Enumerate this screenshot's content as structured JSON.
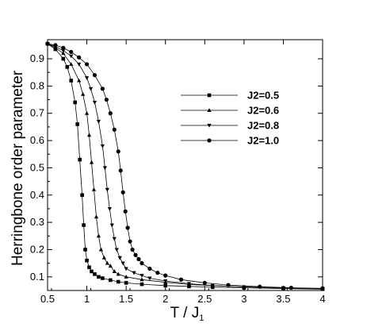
{
  "chart_data": {
    "type": "line",
    "xlabel": "T /  J",
    "xlabel_subscript": "1",
    "ylabel": "Herringbone order parameter",
    "xlim": [
      0.5,
      4
    ],
    "ylim": [
      0.05,
      0.97
    ],
    "x_ticks": [
      "0.5",
      "1",
      "1.5",
      "2",
      "2.5",
      "3",
      "3.5",
      "4"
    ],
    "y_ticks": [
      "0.1",
      "0.2",
      "0.3",
      "0.4",
      "0.5",
      "0.6",
      "0.7",
      "0.8",
      "0.9"
    ],
    "legend_position": "upper-right",
    "series": [
      {
        "name": "J2=0.5",
        "marker": "square",
        "x": [
          0.5,
          0.6,
          0.7,
          0.75,
          0.8,
          0.85,
          0.88,
          0.91,
          0.94,
          0.96,
          0.98,
          1.0,
          1.03,
          1.06,
          1.1,
          1.15,
          1.2,
          1.3,
          1.4,
          1.5,
          1.7,
          2.0,
          2.3,
          2.6,
          3.0,
          3.5,
          4.0
        ],
        "y": [
          0.955,
          0.935,
          0.9,
          0.87,
          0.82,
          0.74,
          0.66,
          0.53,
          0.4,
          0.29,
          0.2,
          0.16,
          0.135,
          0.12,
          0.11,
          0.1,
          0.095,
          0.088,
          0.082,
          0.078,
          0.073,
          0.068,
          0.065,
          0.062,
          0.06,
          0.057,
          0.055
        ]
      },
      {
        "name": "J2=0.6",
        "marker": "triangle-up",
        "x": [
          0.5,
          0.6,
          0.7,
          0.8,
          0.9,
          0.95,
          1.0,
          1.03,
          1.06,
          1.09,
          1.12,
          1.15,
          1.18,
          1.22,
          1.26,
          1.3,
          1.35,
          1.4,
          1.5,
          1.7,
          2.0,
          2.3,
          2.6,
          3.0,
          3.5,
          4.0
        ],
        "y": [
          0.955,
          0.94,
          0.92,
          0.88,
          0.82,
          0.77,
          0.7,
          0.62,
          0.52,
          0.42,
          0.32,
          0.25,
          0.2,
          0.17,
          0.15,
          0.14,
          0.12,
          0.11,
          0.1,
          0.09,
          0.08,
          0.072,
          0.068,
          0.063,
          0.059,
          0.057
        ]
      },
      {
        "name": "J2=0.8",
        "marker": "triangle-down",
        "x": [
          0.5,
          0.6,
          0.7,
          0.8,
          0.9,
          1.0,
          1.05,
          1.1,
          1.15,
          1.2,
          1.23,
          1.26,
          1.29,
          1.32,
          1.35,
          1.38,
          1.42,
          1.46,
          1.5,
          1.6,
          1.7,
          1.8,
          2.0,
          2.3,
          2.6,
          3.0,
          3.5,
          4.0
        ],
        "y": [
          0.955,
          0.945,
          0.93,
          0.91,
          0.88,
          0.83,
          0.79,
          0.74,
          0.67,
          0.58,
          0.5,
          0.42,
          0.35,
          0.29,
          0.24,
          0.2,
          0.17,
          0.15,
          0.13,
          0.115,
          0.105,
          0.095,
          0.085,
          0.075,
          0.068,
          0.063,
          0.06,
          0.057
        ]
      },
      {
        "name": "J2=1.0",
        "marker": "circle",
        "x": [
          0.5,
          0.6,
          0.7,
          0.8,
          0.9,
          1.0,
          1.1,
          1.2,
          1.25,
          1.3,
          1.35,
          1.4,
          1.43,
          1.46,
          1.49,
          1.52,
          1.55,
          1.58,
          1.62,
          1.66,
          1.7,
          1.8,
          1.9,
          2.0,
          2.2,
          2.5,
          2.8,
          3.2,
          3.6,
          4.0
        ],
        "y": [
          0.955,
          0.95,
          0.94,
          0.925,
          0.905,
          0.88,
          0.84,
          0.79,
          0.75,
          0.7,
          0.64,
          0.56,
          0.49,
          0.41,
          0.34,
          0.28,
          0.23,
          0.2,
          0.18,
          0.165,
          0.15,
          0.13,
          0.115,
          0.105,
          0.09,
          0.078,
          0.07,
          0.064,
          0.06,
          0.058
        ]
      }
    ]
  }
}
